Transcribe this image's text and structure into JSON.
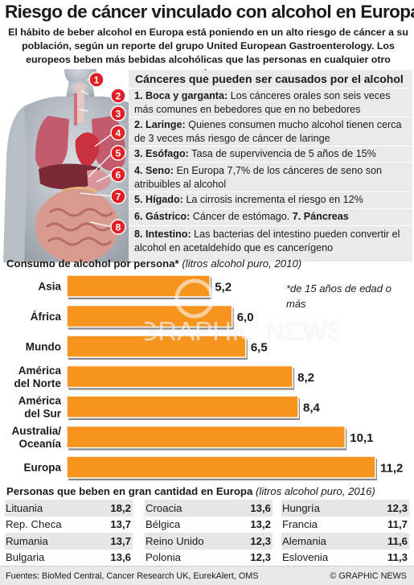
{
  "title": "Riesgo de cáncer vinculado con alcohol en Europa",
  "subtitle": "El hábito de beber alcohol en Europa está poniendo en un alto riesgo de cáncer a su población, según un reporte del grupo United European Gastroenterology. Los europeos beben más bebidas alcohólicas que las personas en cualquier otro continente",
  "anatomy_markers": [
    "1",
    "2",
    "3",
    "4",
    "5",
    "6",
    "7",
    "8"
  ],
  "cancers": {
    "heading": "Cánceres que pueden ser causados por el alcohol",
    "items": [
      {
        "label": "1. Boca y garganta:",
        "text": "Los cánceres orales son seis veces más comunes en bebedores que en no bebedores"
      },
      {
        "label": "2. Laringe:",
        "text": "Quienes consumen mucho alcohol tienen cerca de 3 veces más riesgo de cáncer de laringe"
      },
      {
        "label": "3. Esófago:",
        "text": "Tasa de supervivencia de 5 años de 15%"
      },
      {
        "label": "4. Seno:",
        "text": "En Europa 7,7% de los cánceres de seno son atribuibles al alcohol"
      },
      {
        "label": "5. Hígado:",
        "text": "La cirrosis incrementa el riesgo en 12%"
      },
      {
        "label": "6. Gástrico:",
        "text": "Cáncer de estómago.",
        "label2": "7. Páncreas"
      },
      {
        "label": "8. Intestino:",
        "text": "Las bacterias del intestino pueden convertir el alcohol en acetaldehído que es cancerígeno"
      }
    ]
  },
  "chart_title": {
    "main": "Consumo de alcohol por persona*",
    "note": "(litros alcohol puro, 2010)"
  },
  "chart_footnote": "*de 15 años de edad o más",
  "watermark": "GRAPHIC NEWS",
  "chart_data": {
    "type": "bar",
    "orientation": "horizontal",
    "title": "Consumo de alcohol por persona*",
    "subtitle": "(litros alcohol puro, 2010)",
    "categories": [
      "Asia",
      "África",
      "Mundo",
      "América del Norte",
      "América del Sur",
      "Australia/ Oceanía",
      "Europa"
    ],
    "category_lines": [
      [
        "Asia"
      ],
      [
        "África"
      ],
      [
        "Mundo"
      ],
      [
        "América",
        "del Norte"
      ],
      [
        "América",
        "del Sur"
      ],
      [
        "Australia/",
        "Oceanía"
      ],
      [
        "Europa"
      ]
    ],
    "values": [
      5.2,
      6.0,
      6.5,
      8.2,
      8.4,
      10.1,
      11.2
    ],
    "value_labels": [
      "5,2",
      "6,0",
      "6,5",
      "8,2",
      "8,4",
      "10,1",
      "11,2"
    ],
    "xlim": [
      0,
      11.2
    ],
    "grid": false,
    "bar_color": "#f7941d"
  },
  "heavy_drinkers": {
    "title": "Personas que beben en gran cantidad en Europa",
    "note": "(litros alcohol puro, 2016)",
    "columns": [
      [
        {
          "country": "Lituania",
          "value": "18,2"
        },
        {
          "country": "Rep. Checa",
          "value": "13,7"
        },
        {
          "country": "Rumania",
          "value": "13,7"
        },
        {
          "country": "Bulgaria",
          "value": "13,6"
        }
      ],
      [
        {
          "country": "Croacia",
          "value": "13,6"
        },
        {
          "country": "Bélgica",
          "value": "13,2"
        },
        {
          "country": "Reino Unido",
          "value": "12,3"
        },
        {
          "country": "Polonia",
          "value": "12,3"
        }
      ],
      [
        {
          "country": "Hungría",
          "value": "12,3"
        },
        {
          "country": "Francia",
          "value": "11,7"
        },
        {
          "country": "Alemania",
          "value": "11,6"
        },
        {
          "country": "Eslovenia",
          "value": "11,3"
        }
      ]
    ]
  },
  "footer": {
    "sources": "Fuentes: BioMed Central, Cancer Research UK, EurekAlert, OMS",
    "credit": "© GRAPHIC NEWS"
  },
  "colors": {
    "accent": "#f7941d",
    "marker": "#e31f26",
    "panel": "#eaeaea"
  }
}
